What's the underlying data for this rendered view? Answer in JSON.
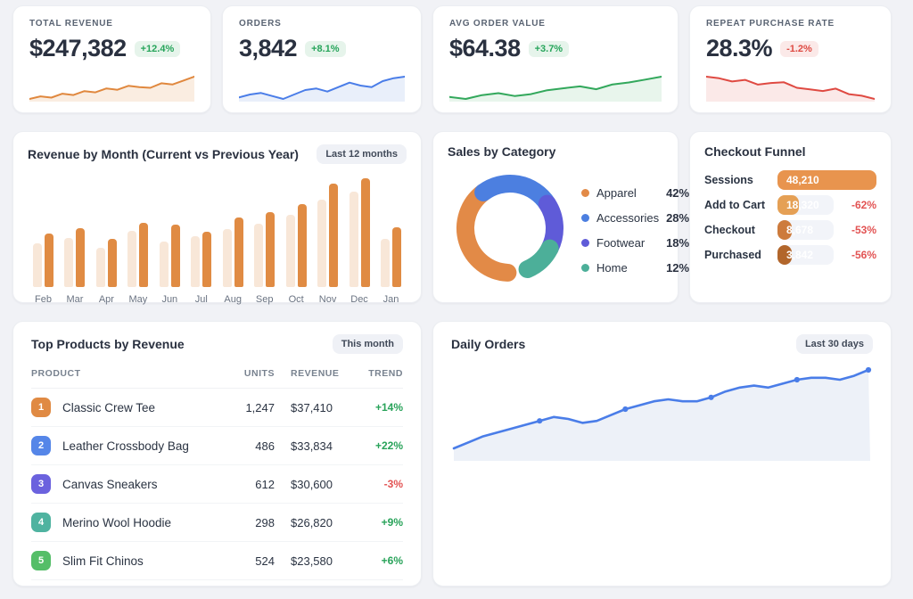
{
  "colors": {
    "page_bg": "#F1F2F6",
    "up_text": "#27A55B",
    "up_bg": "#E6F4EB",
    "down_text": "#DE4A42",
    "down_bg": "#FBE9E8",
    "trend_up": "#29A35A",
    "trend_down": "#E25353",
    "funnel_delta": "#E25353",
    "daily_line": "#4A7DE8",
    "daily_fill": "#EDF1F8",
    "bar_prev": "#F8E7D8",
    "bar_curr": "#E08B43"
  },
  "kpis": [
    {
      "label": "TOTAL REVENUE",
      "value": "$247,382",
      "delta": "+12.4%",
      "dir": "up",
      "line": "#E0883E",
      "fill": "#FAEDE1",
      "spark": [
        18,
        22,
        20,
        26,
        24,
        30,
        28,
        34,
        32,
        38,
        36,
        35,
        42,
        40,
        46,
        52
      ]
    },
    {
      "label": "ORDERS",
      "value": "3,842",
      "delta": "+8.1%",
      "dir": "up",
      "line": "#4A7DE8",
      "fill": "#E9EFFA",
      "spark": [
        20,
        24,
        26,
        22,
        18,
        24,
        30,
        32,
        28,
        34,
        40,
        36,
        34,
        42,
        46,
        48
      ]
    },
    {
      "label": "AVG ORDER VALUE",
      "value": "$64.38",
      "delta": "+3.7%",
      "dir": "up",
      "line": "#33A85C",
      "fill": "#E8F5EC",
      "spark": [
        26,
        24,
        28,
        30,
        27,
        29,
        33,
        35,
        37,
        34,
        39,
        41,
        44,
        47
      ]
    },
    {
      "label": "REPEAT PURCHASE RATE",
      "value": "28.3%",
      "delta": "-1.2%",
      "dir": "down",
      "line": "#DF4A42",
      "fill": "#FBE9E8",
      "spark": [
        62,
        60,
        56,
        58,
        52,
        54,
        55,
        48,
        46,
        44,
        47,
        40,
        38,
        34
      ]
    }
  ],
  "panels": {
    "revenue": {
      "title": "Revenue by Month (Current vs Previous Year)",
      "badge": "Last 12 months"
    },
    "category": {
      "title": "Sales by Category"
    },
    "funnel": {
      "title": "Checkout Funnel"
    },
    "products": {
      "title": "Top Products by Revenue",
      "badge": "This month",
      "columns": [
        "PRODUCT",
        "UNITS",
        "REVENUE",
        "TREND"
      ],
      "rows": [
        {
          "rank": "1",
          "rank_color": "#E08A43",
          "name": "Classic Crew Tee",
          "units": "1,247",
          "revenue": "$37,410",
          "trend": "+14%",
          "dir": "up"
        },
        {
          "rank": "2",
          "rank_color": "#5586E8",
          "name": "Leather Crossbody Bag",
          "units": "486",
          "revenue": "$33,834",
          "trend": "+22%",
          "dir": "up"
        },
        {
          "rank": "3",
          "rank_color": "#6B62DE",
          "name": "Canvas Sneakers",
          "units": "612",
          "revenue": "$30,600",
          "trend": "-3%",
          "dir": "down"
        },
        {
          "rank": "4",
          "rank_color": "#4FB3A0",
          "name": "Merino Wool Hoodie",
          "units": "298",
          "revenue": "$26,820",
          "trend": "+9%",
          "dir": "up"
        },
        {
          "rank": "5",
          "rank_color": "#55BE68",
          "name": "Slim Fit Chinos",
          "units": "524",
          "revenue": "$23,580",
          "trend": "+6%",
          "dir": "up"
        }
      ]
    },
    "daily": {
      "title": "Daily Orders",
      "badge": "Last 30 days"
    }
  },
  "chart_data": [
    {
      "type": "bar",
      "title": "Revenue by Month (Current vs Previous Year)",
      "categories": [
        "Feb",
        "Mar",
        "Apr",
        "May",
        "Jun",
        "Jul",
        "Aug",
        "Sep",
        "Oct",
        "Nov",
        "Dec",
        "Jan"
      ],
      "series": [
        {
          "name": "Previous Year",
          "color": "#F8E7D8",
          "values": [
            40,
            45,
            36,
            52,
            42,
            47,
            53,
            58,
            66,
            80,
            88,
            44
          ]
        },
        {
          "name": "Current Year",
          "color": "#E08B43",
          "values": [
            49,
            54,
            44,
            59,
            57,
            51,
            64,
            69,
            76,
            95,
            100,
            55
          ]
        }
      ],
      "ylabel": "",
      "units": "relative revenue, % of max month",
      "grid": false,
      "legend_position": "none"
    },
    {
      "type": "pie",
      "title": "Sales by Category",
      "items": [
        {
          "label": "Apparel",
          "value": 42,
          "pct": "42%",
          "color": "#E28A47"
        },
        {
          "label": "Accessories",
          "value": 28,
          "pct": "28%",
          "color": "#4C7FE0"
        },
        {
          "label": "Footwear",
          "value": 18,
          "pct": "18%",
          "color": "#5F5BD8"
        },
        {
          "label": "Home",
          "value": 12,
          "pct": "12%",
          "color": "#4CAF99"
        }
      ],
      "style": "donut with rounded segment caps, legend right"
    },
    {
      "type": "bar",
      "title": "Checkout Funnel",
      "orientation": "horizontal",
      "stages": [
        {
          "label": "Sessions",
          "value": 48210,
          "display": "48,210",
          "width_pct": 100,
          "delta": "",
          "color": "#E8944E"
        },
        {
          "label": "Add to Cart",
          "value": 18320,
          "display": "18,320",
          "width_pct": 38,
          "delta": "-62%",
          "color": "#E5A055"
        },
        {
          "label": "Checkout",
          "value": 8678,
          "display": "8,678",
          "width_pct": 18,
          "delta": "-53%",
          "color": "#CD7B3C"
        },
        {
          "label": "Purchased",
          "value": 3842,
          "display": "3,842",
          "width_pct": 8,
          "delta": "-56%",
          "color": "#B2662B"
        }
      ]
    },
    {
      "type": "area",
      "title": "Daily Orders",
      "period": "Last 30 days",
      "units": "relative orders per day",
      "values": [
        34,
        37,
        40,
        42,
        44,
        46,
        48,
        50,
        49,
        47,
        48,
        51,
        54,
        56,
        58,
        59,
        58,
        58,
        60,
        63,
        65,
        66,
        65,
        67,
        69,
        70,
        70,
        69,
        71,
        74
      ],
      "marker_indices": [
        6,
        12,
        18,
        24,
        29
      ],
      "line_color": "#4A7DE8",
      "fill_color": "#EDF1F8",
      "grid": false
    }
  ]
}
